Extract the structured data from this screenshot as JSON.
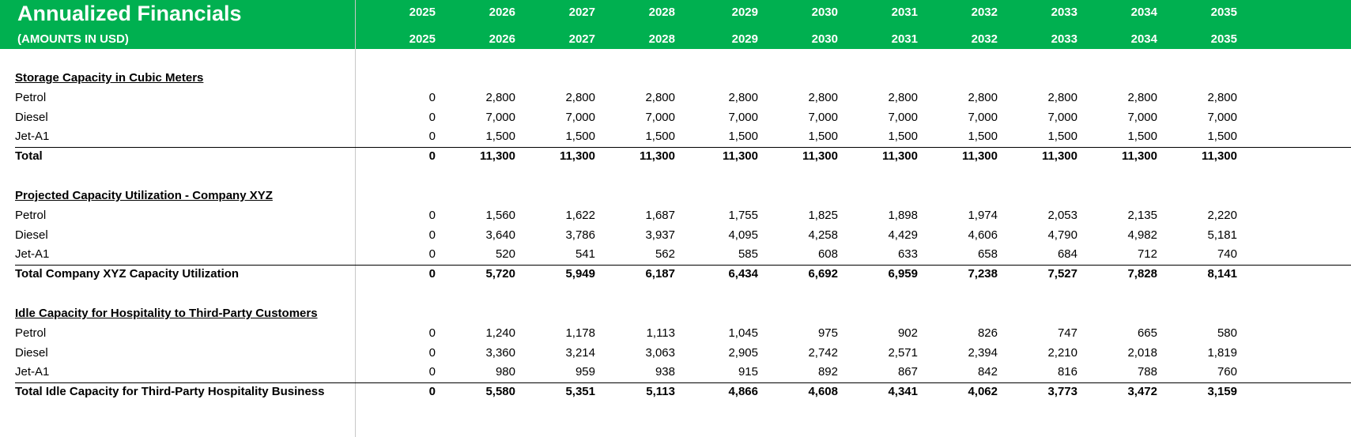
{
  "header": {
    "title": "Annualized Financials",
    "subtitle": "(AMOUNTS IN USD)",
    "years": [
      "2025",
      "2026",
      "2027",
      "2028",
      "2029",
      "2030",
      "2031",
      "2032",
      "2033",
      "2034",
      "2035"
    ]
  },
  "sections": [
    {
      "title": "Storage Capacity in Cubic Meters",
      "rows": [
        {
          "label": "Petrol",
          "values": [
            "0",
            "2,800",
            "2,800",
            "2,800",
            "2,800",
            "2,800",
            "2,800",
            "2,800",
            "2,800",
            "2,800",
            "2,800"
          ]
        },
        {
          "label": "Diesel",
          "values": [
            "0",
            "7,000",
            "7,000",
            "7,000",
            "7,000",
            "7,000",
            "7,000",
            "7,000",
            "7,000",
            "7,000",
            "7,000"
          ]
        },
        {
          "label": "Jet-A1",
          "values": [
            "0",
            "1,500",
            "1,500",
            "1,500",
            "1,500",
            "1,500",
            "1,500",
            "1,500",
            "1,500",
            "1,500",
            "1,500"
          ]
        }
      ],
      "total": {
        "label": "Total",
        "values": [
          "0",
          "11,300",
          "11,300",
          "11,300",
          "11,300",
          "11,300",
          "11,300",
          "11,300",
          "11,300",
          "11,300",
          "11,300"
        ]
      }
    },
    {
      "title": "Projected Capacity Utilization - Company XYZ",
      "rows": [
        {
          "label": "Petrol",
          "values": [
            "0",
            "1,560",
            "1,622",
            "1,687",
            "1,755",
            "1,825",
            "1,898",
            "1,974",
            "2,053",
            "2,135",
            "2,220"
          ]
        },
        {
          "label": "Diesel",
          "values": [
            "0",
            "3,640",
            "3,786",
            "3,937",
            "4,095",
            "4,258",
            "4,429",
            "4,606",
            "4,790",
            "4,982",
            "5,181"
          ]
        },
        {
          "label": "Jet-A1",
          "values": [
            "0",
            "520",
            "541",
            "562",
            "585",
            "608",
            "633",
            "658",
            "684",
            "712",
            "740"
          ]
        }
      ],
      "total": {
        "label": "Total Company XYZ Capacity Utilization",
        "values": [
          "0",
          "5,720",
          "5,949",
          "6,187",
          "6,434",
          "6,692",
          "6,959",
          "7,238",
          "7,527",
          "7,828",
          "8,141"
        ]
      }
    },
    {
      "title": "Idle Capacity for Hospitality to Third-Party Customers",
      "rows": [
        {
          "label": "Petrol",
          "values": [
            "0",
            "1,240",
            "1,178",
            "1,113",
            "1,045",
            "975",
            "902",
            "826",
            "747",
            "665",
            "580"
          ]
        },
        {
          "label": "Diesel",
          "values": [
            "0",
            "3,360",
            "3,214",
            "3,063",
            "2,905",
            "2,742",
            "2,571",
            "2,394",
            "2,210",
            "2,018",
            "1,819"
          ]
        },
        {
          "label": "Jet-A1",
          "values": [
            "0",
            "980",
            "959",
            "938",
            "915",
            "892",
            "867",
            "842",
            "816",
            "788",
            "760"
          ]
        }
      ],
      "total": {
        "label": "Total Idle Capacity for Third-Party Hospitality Business",
        "values": [
          "0",
          "5,580",
          "5,351",
          "5,113",
          "4,866",
          "4,608",
          "4,341",
          "4,062",
          "3,773",
          "3,472",
          "3,159"
        ]
      }
    }
  ]
}
